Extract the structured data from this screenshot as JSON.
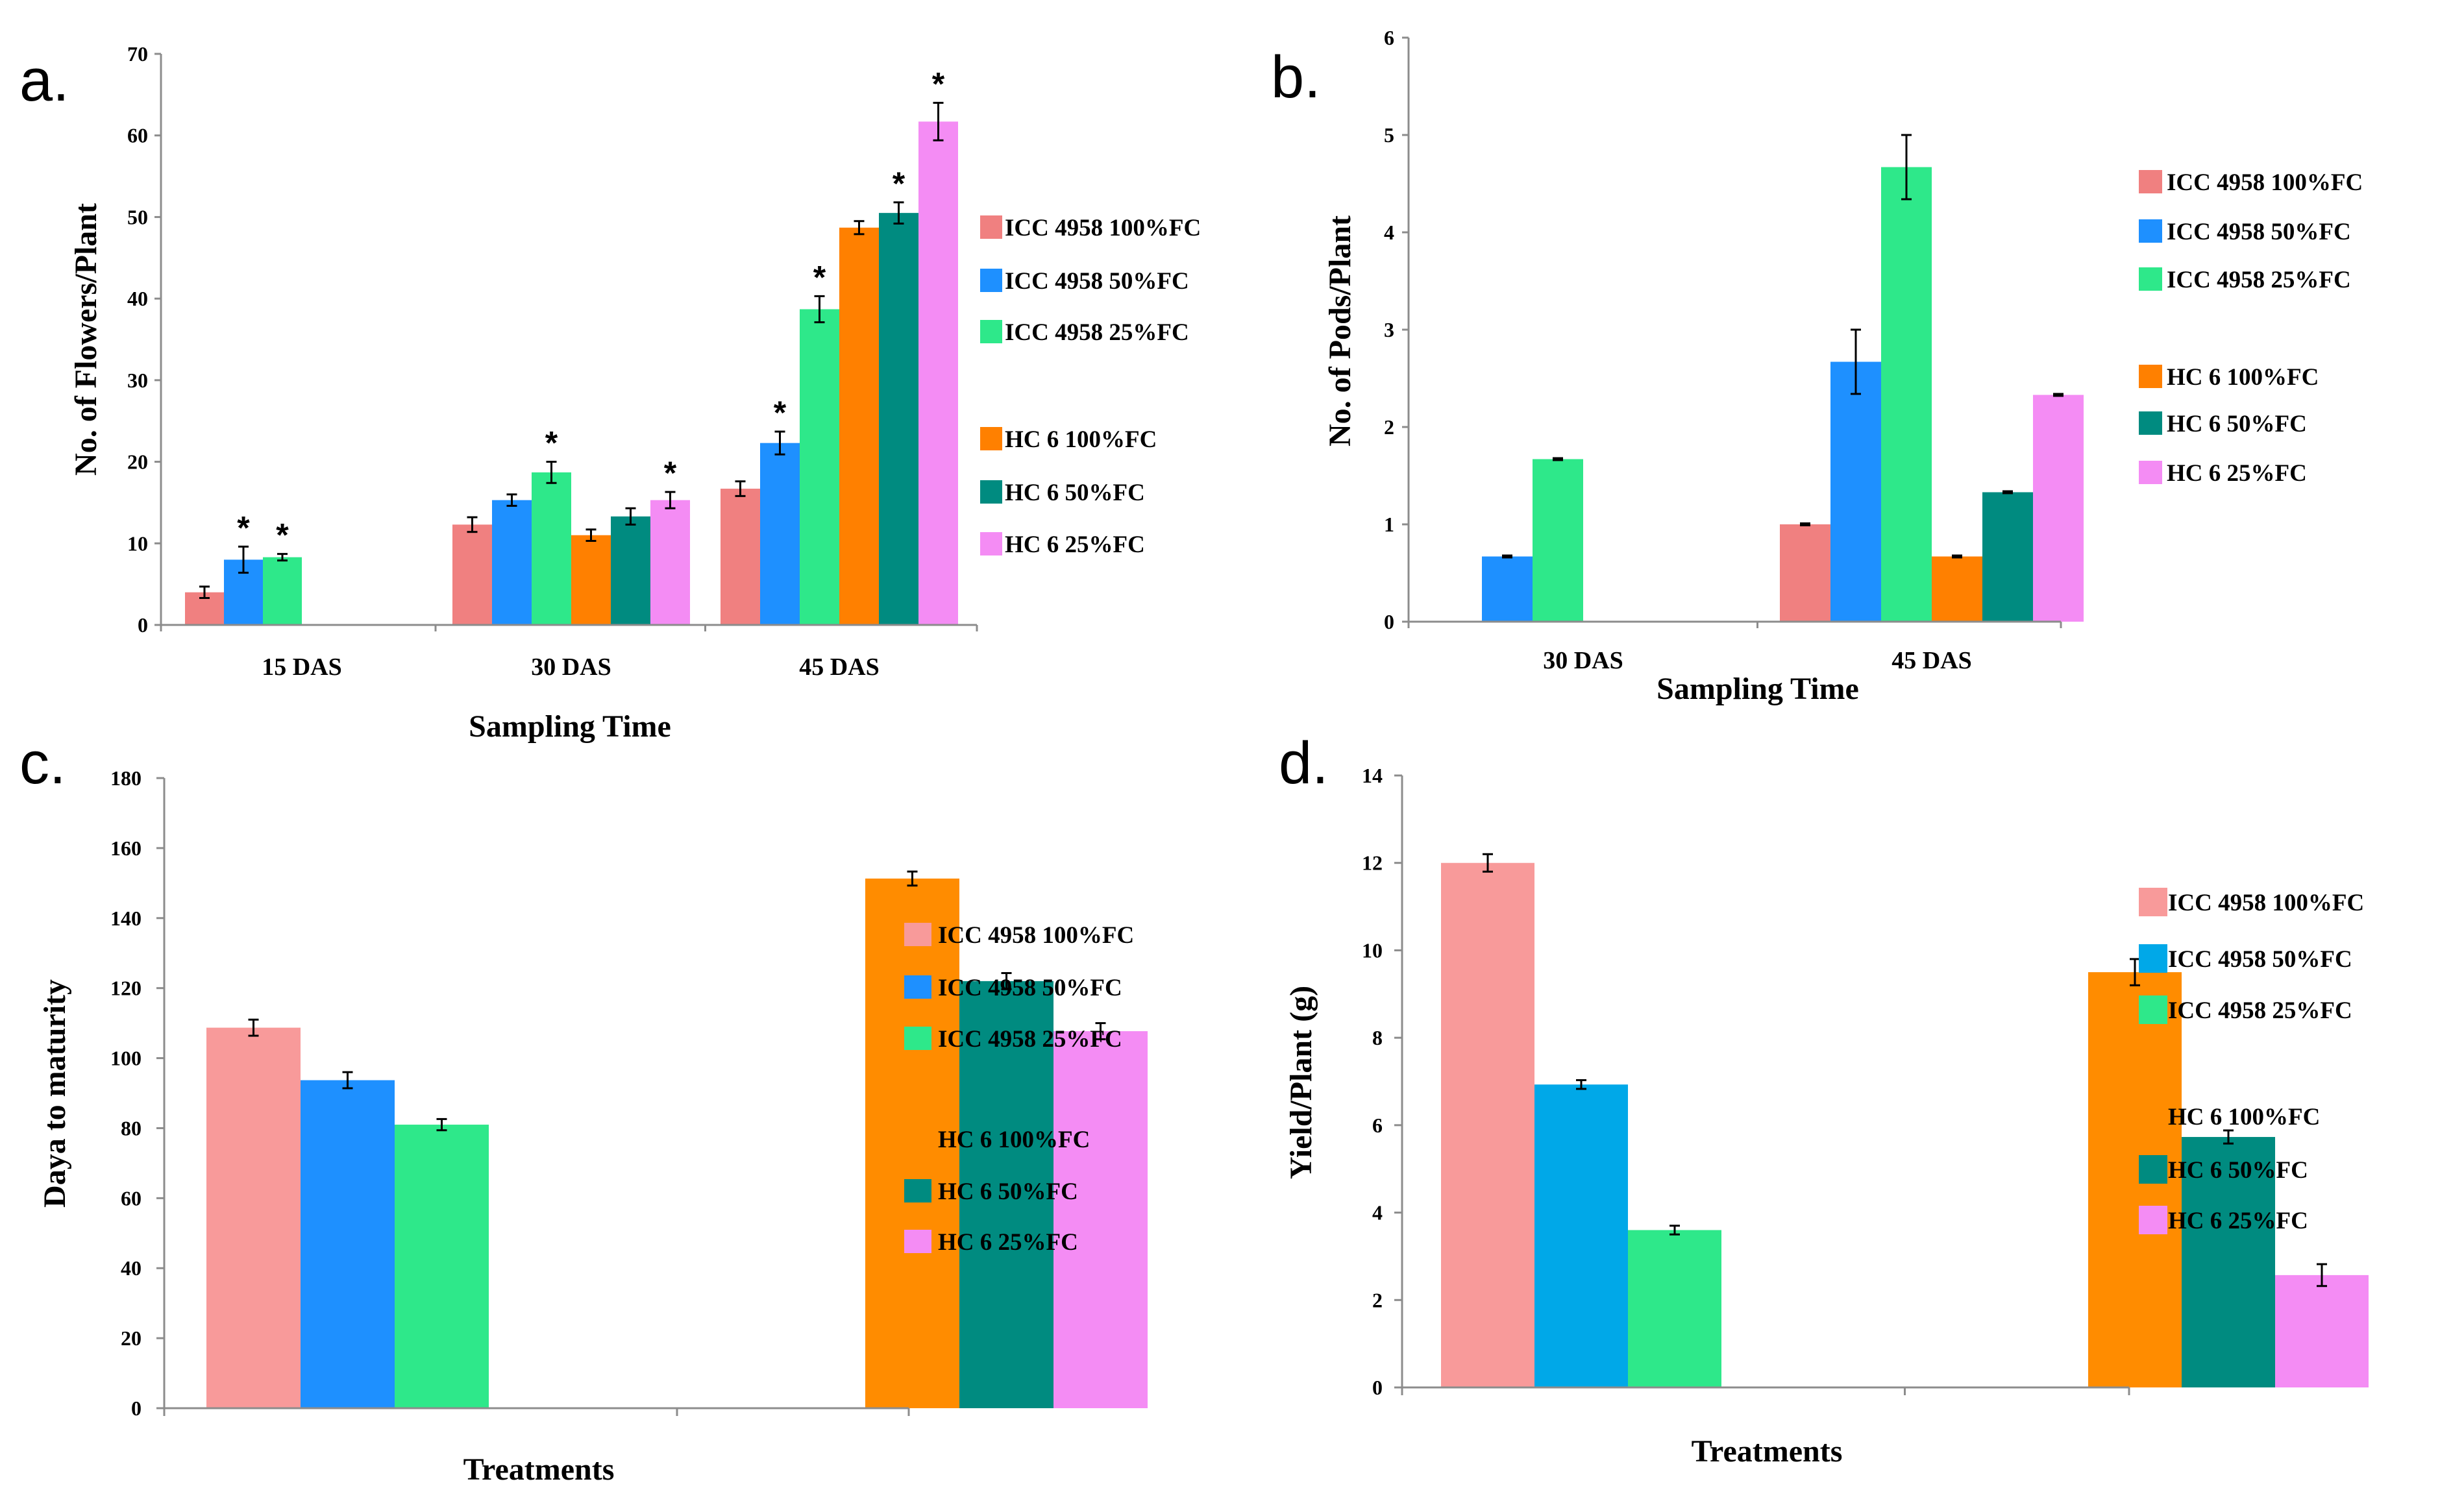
{
  "chart_data": [
    {
      "panel": "a.",
      "type": "bar",
      "title": "",
      "xlabel": "Sampling Time",
      "ylabel": "No. of Flowers/Plant",
      "ylim": [
        0,
        70
      ],
      "yticks": [
        0,
        10,
        20,
        30,
        40,
        50,
        60,
        70
      ],
      "categories": [
        "15 DAS",
        "30 DAS",
        "45 DAS"
      ],
      "series": [
        {
          "name": "ICC 4958 100%FC",
          "color": "#f08080",
          "values": [
            4,
            12.3,
            16.7
          ],
          "errors": [
            0.7,
            0.9,
            0.9
          ],
          "sig": [
            false,
            false,
            false
          ]
        },
        {
          "name": "ICC 4958 50%FC",
          "color": "#1e90ff",
          "values": [
            8,
            15.3,
            22.3
          ],
          "errors": [
            1.6,
            0.7,
            1.4
          ],
          "sig": [
            true,
            false,
            true
          ]
        },
        {
          "name": "ICC 4958 25%FC",
          "color": "#2ee88a",
          "values": [
            8.3,
            18.7,
            38.7
          ],
          "errors": [
            0.4,
            1.3,
            1.6
          ],
          "sig": [
            true,
            true,
            true
          ]
        },
        {
          "name": "HC 6 100%FC",
          "color": "#ff8000",
          "values": [
            0,
            11,
            48.7
          ],
          "errors": [
            0,
            0.7,
            0.8
          ],
          "sig": [
            false,
            false,
            false
          ]
        },
        {
          "name": "HC 6 50%FC",
          "color": "#008b80",
          "values": [
            0,
            13.3,
            50.5
          ],
          "errors": [
            0,
            1.0,
            1.3
          ],
          "sig": [
            false,
            false,
            true
          ]
        },
        {
          "name": "HC 6 25%FC",
          "color": "#f48cf4",
          "values": [
            0,
            15.3,
            61.7
          ],
          "errors": [
            0,
            1.0,
            2.3
          ],
          "sig": [
            false,
            true,
            true
          ]
        }
      ],
      "sig_marker": "*",
      "legend_position": "right"
    },
    {
      "panel": "b.",
      "type": "bar",
      "title": "",
      "xlabel": "Sampling Time",
      "ylabel": "No. of Pods/Plant",
      "ylim": [
        0,
        6
      ],
      "yticks": [
        0,
        1,
        2,
        3,
        4,
        5,
        6
      ],
      "categories": [
        "30 DAS",
        "45 DAS"
      ],
      "series": [
        {
          "name": "ICC 4958 100%FC",
          "color": "#f08080",
          "values": [
            0,
            1.0
          ],
          "errors": [
            0,
            0.01
          ],
          "sig": [
            false,
            false
          ]
        },
        {
          "name": "ICC 4958 50%FC",
          "color": "#1e90ff",
          "values": [
            0.67,
            2.67
          ],
          "errors": [
            0.01,
            0.33
          ],
          "sig": [
            false,
            false
          ]
        },
        {
          "name": "ICC 4958 25%FC",
          "color": "#2ee88a",
          "values": [
            1.67,
            4.67
          ],
          "errors": [
            0.01,
            0.33
          ],
          "sig": [
            false,
            false
          ]
        },
        {
          "name": "HC 6 100%FC",
          "color": "#ff8000",
          "values": [
            0,
            0.67
          ],
          "errors": [
            0,
            0.01
          ],
          "sig": [
            false,
            false
          ]
        },
        {
          "name": "HC 6 50%FC",
          "color": "#008b80",
          "values": [
            0,
            1.33
          ],
          "errors": [
            0,
            0.01
          ],
          "sig": [
            false,
            false
          ]
        },
        {
          "name": "HC 6 25%FC",
          "color": "#f48cf4",
          "values": [
            0,
            2.33
          ],
          "errors": [
            0,
            0.01
          ],
          "sig": [
            false,
            false
          ]
        }
      ],
      "legend_position": "right"
    },
    {
      "panel": "c.",
      "type": "bar",
      "title": "",
      "xlabel": "Treatments",
      "ylabel": "Daya to maturity",
      "ylim": [
        0,
        180
      ],
      "yticks": [
        0,
        20,
        40,
        60,
        80,
        100,
        120,
        140,
        160,
        180
      ],
      "categories": [
        "",
        ""
      ],
      "series": [
        {
          "name": "ICC 4958 100%FC",
          "color": "#f89a9a",
          "values": [
            108.7,
            0
          ],
          "errors": [
            2.3,
            0
          ]
        },
        {
          "name": "ICC 4958 50%FC",
          "color": "#1e90ff",
          "values": [
            93.7,
            0
          ],
          "errors": [
            2.3,
            0
          ]
        },
        {
          "name": "ICC 4958 25%FC",
          "color": "#2ee88a",
          "values": [
            81,
            0
          ],
          "errors": [
            1.6,
            0
          ]
        },
        {
          "name": "HC 6 100%FC",
          "color": "#ff8c00",
          "values": [
            0,
            151.3
          ],
          "errors": [
            0,
            2.0
          ]
        },
        {
          "name": "HC 6 50%FC",
          "color": "#008b80",
          "values": [
            0,
            122
          ],
          "errors": [
            0,
            2.3
          ]
        },
        {
          "name": "HC 6 25%FC",
          "color": "#f48cf4",
          "values": [
            0,
            107.7
          ],
          "errors": [
            0,
            2.3
          ]
        }
      ],
      "legend_position": "right"
    },
    {
      "panel": "d.",
      "type": "bar",
      "title": "",
      "xlabel": "Treatments",
      "ylabel": "Yield/Plant (g)",
      "ylim": [
        0,
        14
      ],
      "yticks": [
        0,
        2,
        4,
        6,
        8,
        10,
        12,
        14
      ],
      "categories": [
        "",
        ""
      ],
      "series": [
        {
          "name": "ICC 4958 100%FC",
          "color": "#f89a9a",
          "values": [
            12.0,
            0
          ],
          "errors": [
            0.2,
            0
          ]
        },
        {
          "name": "ICC 4958 50%FC",
          "color": "#00a8e8",
          "values": [
            6.93,
            0
          ],
          "errors": [
            0.1,
            0
          ]
        },
        {
          "name": "ICC 4958 25%FC",
          "color": "#2ee88a",
          "values": [
            3.6,
            0
          ],
          "errors": [
            0.1,
            0
          ]
        },
        {
          "name": "HC 6 100%FC",
          "color": "#ff8c00",
          "values": [
            0,
            9.5
          ],
          "errors": [
            0,
            0.3
          ]
        },
        {
          "name": "HC 6 50%FC",
          "color": "#008b80",
          "values": [
            0,
            5.73
          ],
          "errors": [
            0,
            0.15
          ]
        },
        {
          "name": "HC 6 25%FC",
          "color": "#f48cf4",
          "values": [
            0,
            2.57
          ],
          "errors": [
            0,
            0.25
          ]
        }
      ],
      "legend_position": "right"
    }
  ]
}
